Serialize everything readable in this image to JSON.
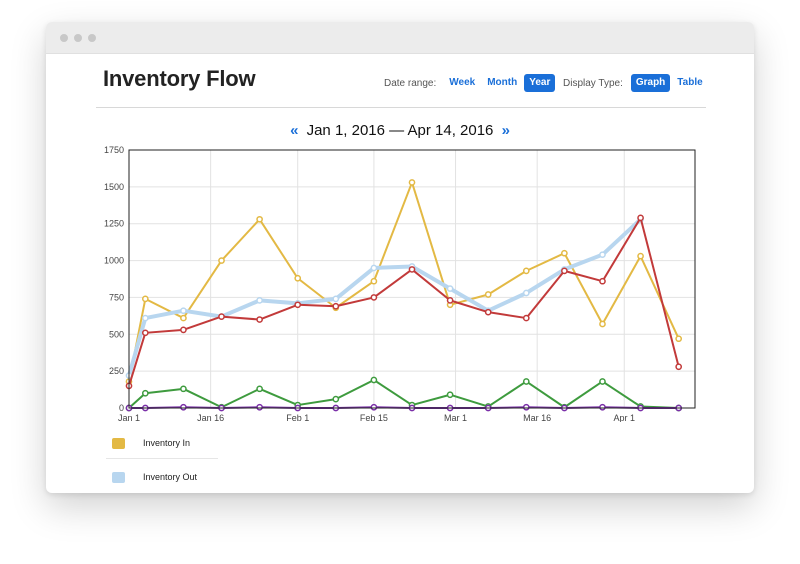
{
  "header": {
    "title": "Inventory Flow"
  },
  "date_range": {
    "label": "Date range:",
    "options": [
      {
        "label": "Week",
        "active": false
      },
      {
        "label": "Month",
        "active": false
      },
      {
        "label": "Year",
        "active": true
      }
    ]
  },
  "display_type": {
    "label": "Display Type:",
    "options": [
      {
        "label": "Graph",
        "active": true
      },
      {
        "label": "Table",
        "active": false
      }
    ]
  },
  "date_nav": {
    "prev": "«",
    "range": "Jan 1, 2016 — Apr 14, 2016",
    "next": "»"
  },
  "legend": [
    {
      "label": "Inventory In",
      "color": "#e3b944"
    },
    {
      "label": "Inventory Out",
      "color": "#b8d6ef"
    }
  ],
  "chart_data": {
    "type": "line",
    "x": [
      "2016-01-01",
      "2016-01-04",
      "2016-01-11",
      "2016-01-18",
      "2016-01-25",
      "2016-02-01",
      "2016-02-08",
      "2016-02-15",
      "2016-02-22",
      "2016-02-29",
      "2016-03-07",
      "2016-03-14",
      "2016-03-21",
      "2016-03-28",
      "2016-04-04",
      "2016-04-11"
    ],
    "x_ticks": [
      "Jan 1",
      "Jan 16",
      "Feb 1",
      "Feb 15",
      "Mar 1",
      "Mar 16",
      "Apr 1"
    ],
    "x_tick_dates": [
      "2016-01-01",
      "2016-01-16",
      "2016-02-01",
      "2016-02-15",
      "2016-03-01",
      "2016-03-16",
      "2016-04-01"
    ],
    "x_range": [
      "2016-01-01",
      "2016-04-14"
    ],
    "ylim": [
      0,
      1750
    ],
    "y_ticks": [
      0,
      250,
      500,
      750,
      1000,
      1250,
      1500,
      1750
    ],
    "grid": true,
    "series": [
      {
        "name": "Inventory In",
        "color": "#e3b944",
        "values": [
          180,
          740,
          610,
          1000,
          1280,
          880,
          680,
          860,
          1530,
          700,
          770,
          930,
          1050,
          570,
          1030,
          470
        ]
      },
      {
        "name": "Inventory Out",
        "color": "#b8d6ef",
        "values": [
          220,
          610,
          660,
          620,
          730,
          710,
          740,
          950,
          960,
          810,
          660,
          780,
          940,
          1040,
          1280,
          null
        ]
      },
      {
        "color": "#c23a3a",
        "values": [
          150,
          510,
          530,
          620,
          600,
          700,
          690,
          750,
          940,
          730,
          650,
          610,
          930,
          860,
          1290,
          280
        ]
      },
      {
        "color": "#3e9b3e",
        "values": [
          0,
          100,
          130,
          5,
          130,
          20,
          60,
          190,
          20,
          90,
          10,
          180,
          5,
          180,
          10,
          0
        ]
      },
      {
        "color": "#7a2ea8",
        "values": [
          0,
          0,
          5,
          0,
          5,
          0,
          0,
          5,
          0,
          0,
          0,
          5,
          0,
          5,
          0,
          0
        ]
      }
    ]
  }
}
